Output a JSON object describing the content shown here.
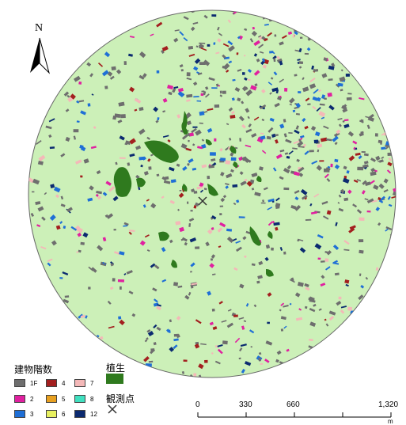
{
  "north_arrow": {
    "label": "N"
  },
  "legend": {
    "title": "建物階数",
    "items": [
      {
        "label": "1F",
        "color": "#6e6e6e"
      },
      {
        "label": "2",
        "color": "#e020a0"
      },
      {
        "label": "3",
        "color": "#1f6fd6"
      },
      {
        "label": "4",
        "color": "#a31f1f"
      },
      {
        "label": "5",
        "color": "#e8a020"
      },
      {
        "label": "6",
        "color": "#e8f060"
      },
      {
        "label": "7",
        "color": "#f4b8b8"
      },
      {
        "label": "8",
        "color": "#40e0c0"
      },
      {
        "label": "12",
        "color": "#0b2a70"
      }
    ],
    "vegetation": {
      "label": "植生",
      "color": "#2f7a1e"
    },
    "observation_point": {
      "label": "観測点",
      "symbol": "×"
    }
  },
  "scale_bar": {
    "ticks": [
      "0",
      "330",
      "660",
      "1,320"
    ],
    "unit": "m"
  },
  "colors": {
    "study_area_fill": "#ccf0b8",
    "study_area_outline": "#666666",
    "background": "#ffffff"
  }
}
